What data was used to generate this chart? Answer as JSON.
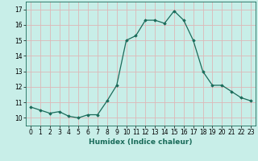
{
  "x": [
    0,
    1,
    2,
    3,
    4,
    5,
    6,
    7,
    8,
    9,
    10,
    11,
    12,
    13,
    14,
    15,
    16,
    17,
    18,
    19,
    20,
    21,
    22,
    23
  ],
  "y": [
    10.7,
    10.5,
    10.3,
    10.4,
    10.1,
    10.0,
    10.2,
    10.2,
    11.1,
    12.1,
    15.0,
    15.3,
    16.3,
    16.3,
    16.1,
    16.9,
    16.3,
    15.0,
    13.0,
    12.1,
    12.1,
    11.7,
    11.3,
    11.1
  ],
  "line_color": "#1a6b5a",
  "marker": "D",
  "marker_size": 1.8,
  "bg_color": "#c8eee8",
  "grid_color": "#ddb8b8",
  "xlabel": "Humidex (Indice chaleur)",
  "xlim": [
    -0.5,
    23.5
  ],
  "ylim": [
    9.5,
    17.5
  ],
  "yticks": [
    10,
    11,
    12,
    13,
    14,
    15,
    16,
    17
  ],
  "xticks": [
    0,
    1,
    2,
    3,
    4,
    5,
    6,
    7,
    8,
    9,
    10,
    11,
    12,
    13,
    14,
    15,
    16,
    17,
    18,
    19,
    20,
    21,
    22,
    23
  ],
  "label_fontsize": 6.5,
  "tick_fontsize": 5.5,
  "linewidth": 0.9
}
